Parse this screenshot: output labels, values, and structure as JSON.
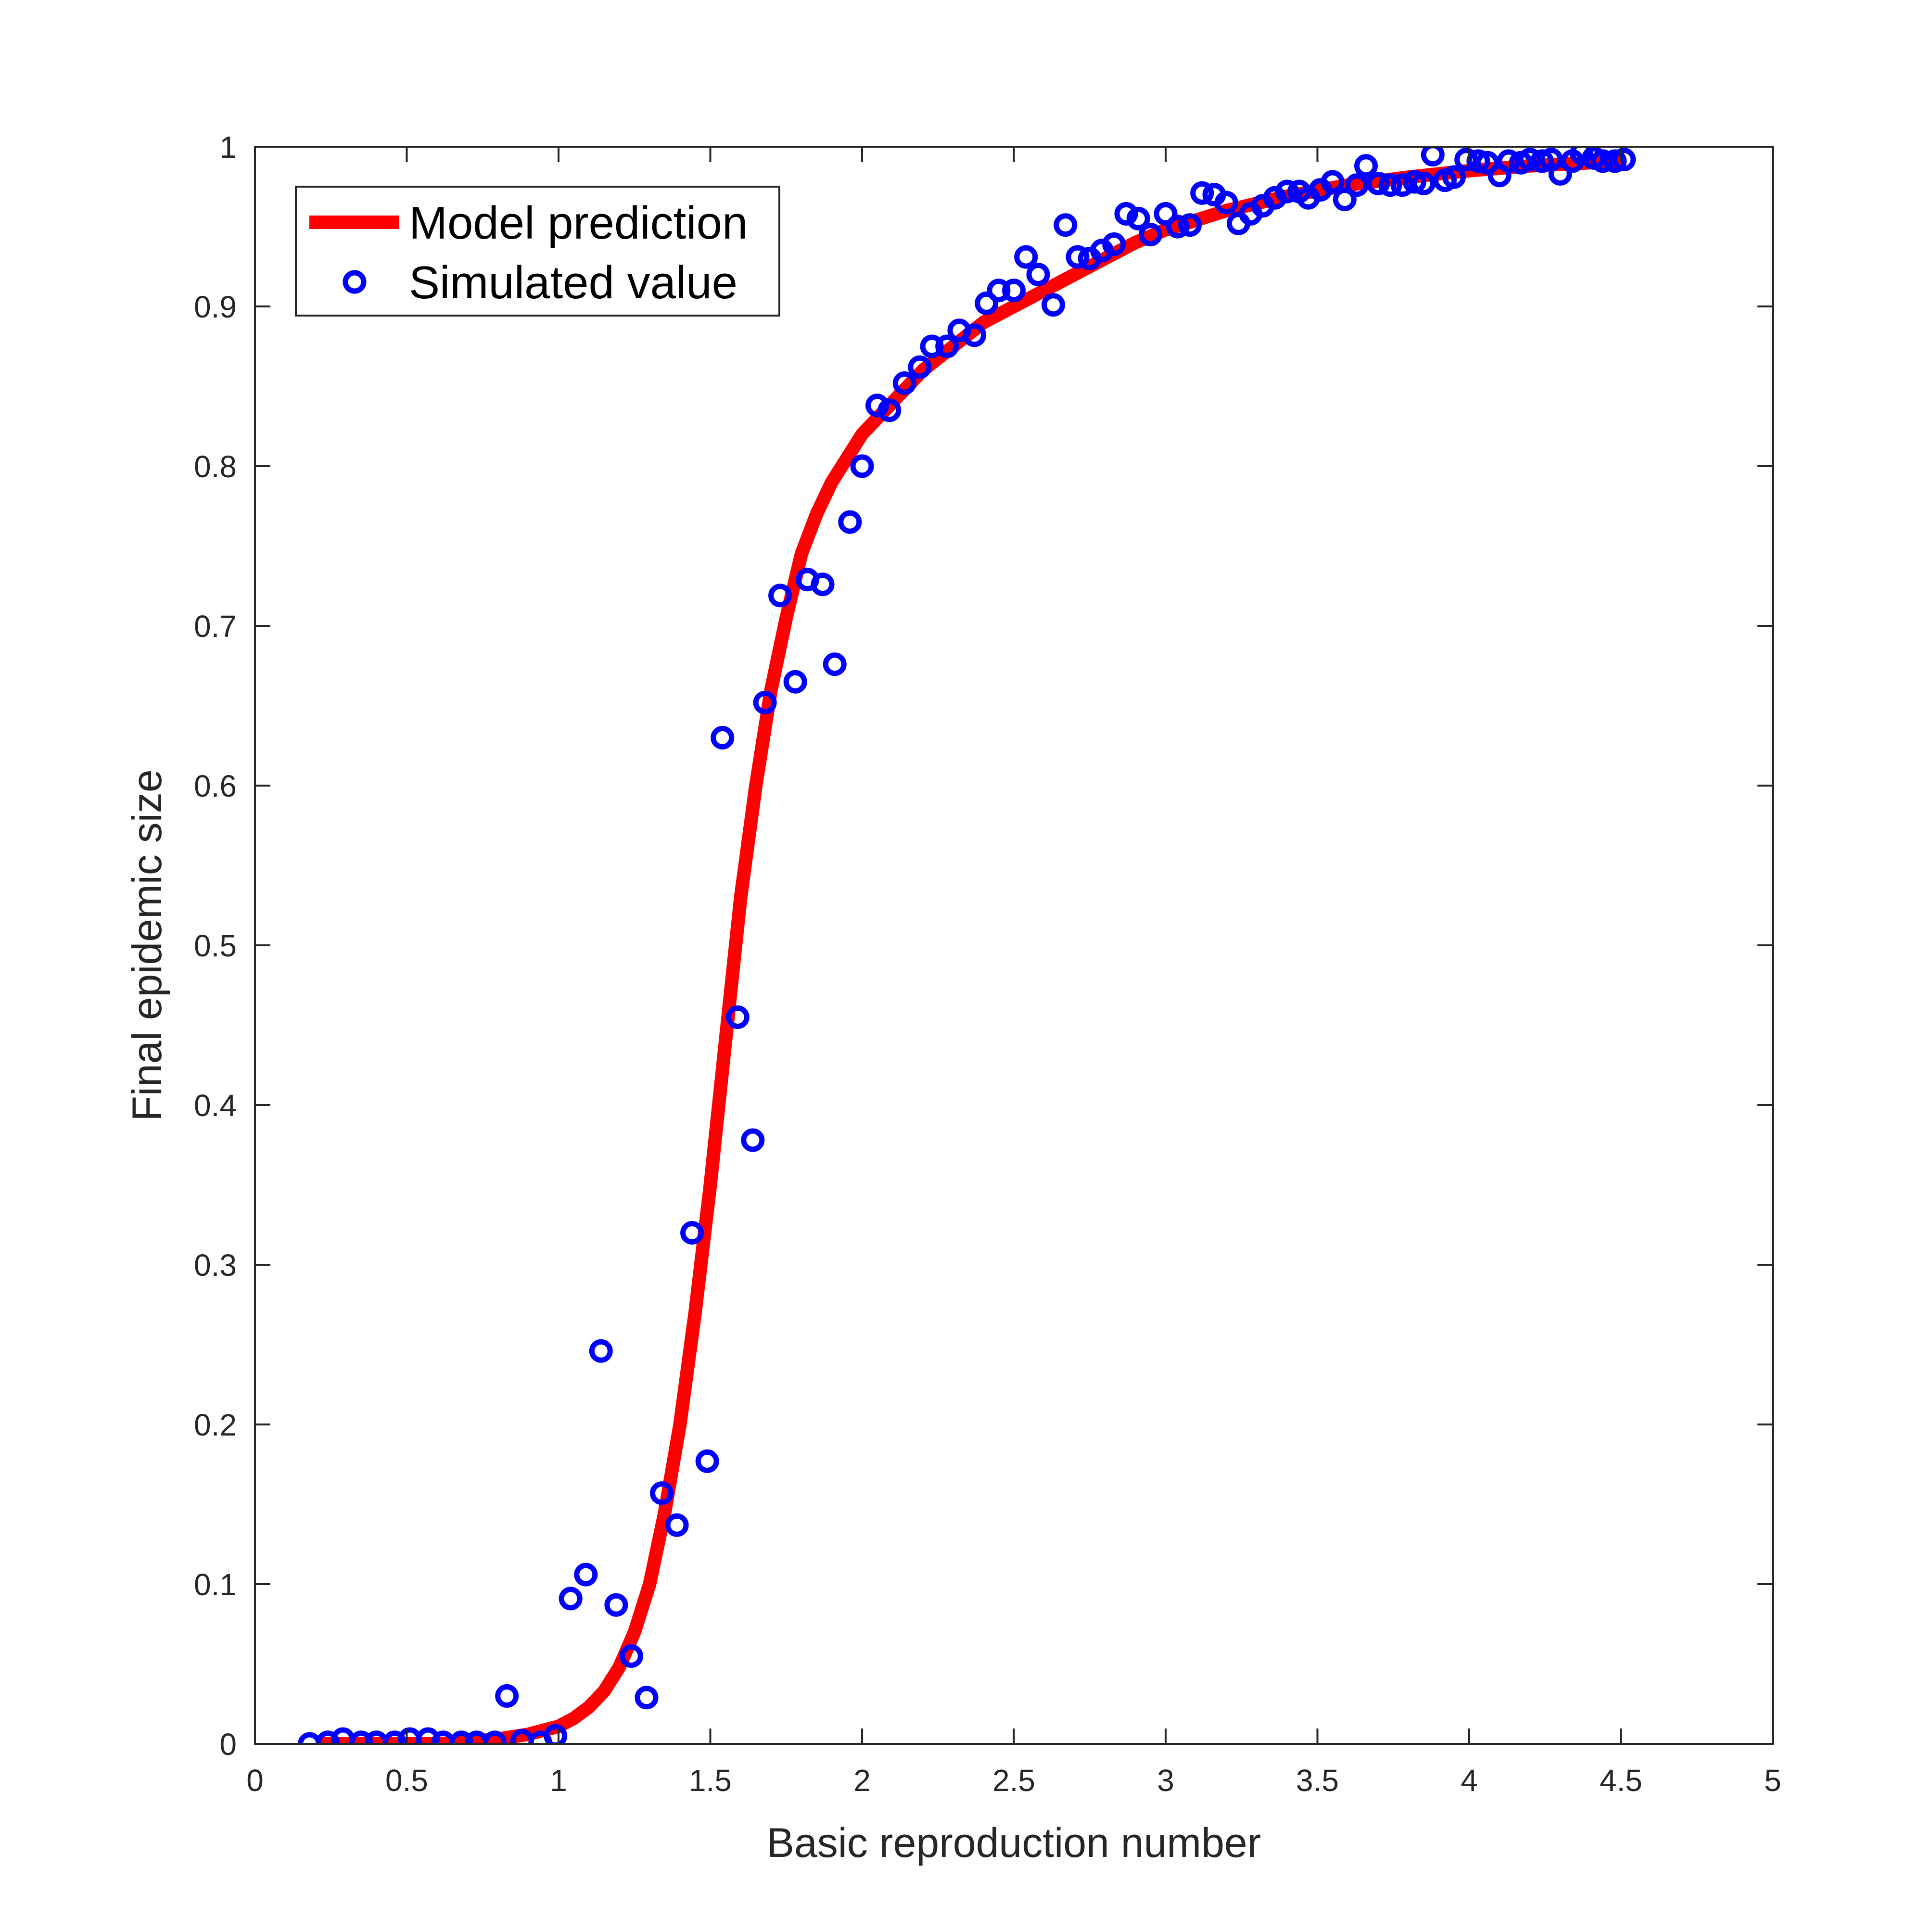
{
  "chart_data": {
    "type": "line",
    "title": "",
    "xlabel": "Basic reproduction number",
    "ylabel": "Final epidemic size",
    "xlim": [
      0,
      5
    ],
    "ylim": [
      0,
      1
    ],
    "x_ticks": [
      0,
      0.5,
      1,
      1.5,
      2,
      2.5,
      3,
      3.5,
      4,
      4.5,
      5
    ],
    "x_tick_labels": [
      "0",
      "0.5",
      "1",
      "1.5",
      "2",
      "2.5",
      "3",
      "3.5",
      "4",
      "4.5",
      "5"
    ],
    "y_ticks": [
      0,
      0.1,
      0.2,
      0.3,
      0.4,
      0.5,
      0.6,
      0.7,
      0.8,
      0.9,
      1
    ],
    "y_tick_labels": [
      "0",
      "0.1",
      "0.2",
      "0.3",
      "0.4",
      "0.5",
      "0.6",
      "0.7",
      "0.8",
      "0.9",
      "1"
    ],
    "grid": false,
    "legend": {
      "position": "top-left"
    },
    "series": [
      {
        "name": "Model prediction",
        "kind": "line",
        "color": "#ff0000",
        "x": [
          0.2,
          0.4,
          0.6,
          0.8,
          0.9,
          1.0,
          1.05,
          1.1,
          1.15,
          1.2,
          1.25,
          1.3,
          1.35,
          1.4,
          1.45,
          1.5,
          1.55,
          1.6,
          1.65,
          1.7,
          1.75,
          1.8,
          1.85,
          1.9,
          1.95,
          2.0,
          2.1,
          2.2,
          2.3,
          2.4,
          2.5,
          2.6,
          2.7,
          2.8,
          2.9,
          3.0,
          3.2,
          3.4,
          3.6,
          3.8,
          4.0,
          4.2,
          4.5
        ],
        "y": [
          0.0,
          0.0,
          0.0,
          0.003,
          0.006,
          0.011,
          0.016,
          0.023,
          0.033,
          0.048,
          0.07,
          0.1,
          0.145,
          0.2,
          0.27,
          0.35,
          0.44,
          0.53,
          0.6,
          0.66,
          0.705,
          0.745,
          0.77,
          0.79,
          0.805,
          0.82,
          0.84,
          0.86,
          0.875,
          0.89,
          0.9,
          0.91,
          0.92,
          0.93,
          0.94,
          0.948,
          0.96,
          0.969,
          0.976,
          0.981,
          0.985,
          0.988,
          0.991
        ]
      },
      {
        "name": "Simulated value",
        "kind": "scatter",
        "color": "#0000ff",
        "x": [
          0.18,
          0.24,
          0.29,
          0.35,
          0.4,
          0.46,
          0.51,
          0.57,
          0.62,
          0.68,
          0.73,
          0.79,
          0.83,
          0.88,
          0.94,
          0.99,
          1.04,
          1.09,
          1.14,
          1.19,
          1.24,
          1.29,
          1.34,
          1.39,
          1.44,
          1.49,
          1.54,
          1.59,
          1.64,
          1.68,
          1.73,
          1.78,
          1.82,
          1.87,
          1.91,
          1.96,
          2.0,
          2.05,
          2.09,
          2.14,
          2.19,
          2.23,
          2.28,
          2.32,
          2.37,
          2.41,
          2.45,
          2.5,
          2.54,
          2.58,
          2.63,
          2.67,
          2.71,
          2.75,
          2.79,
          2.83,
          2.87,
          2.91,
          2.95,
          3.0,
          3.04,
          3.08,
          3.12,
          3.16,
          3.2,
          3.24,
          3.28,
          3.32,
          3.36,
          3.4,
          3.44,
          3.47,
          3.51,
          3.55,
          3.59,
          3.63,
          3.66,
          3.7,
          3.74,
          3.78,
          3.82,
          3.85,
          3.88,
          3.92,
          3.95,
          3.99,
          4.03,
          4.06,
          4.1,
          4.13,
          4.17,
          4.2,
          4.24,
          4.27,
          4.3,
          4.34,
          4.37,
          4.41,
          4.44,
          4.48,
          4.51
        ],
        "y": [
          0.0,
          0.001,
          0.003,
          0.001,
          0.001,
          0.001,
          0.003,
          0.003,
          0.001,
          0.001,
          0.001,
          0.001,
          0.03,
          0.002,
          0.001,
          0.005,
          0.091,
          0.106,
          0.246,
          0.087,
          0.055,
          0.029,
          0.157,
          0.137,
          0.32,
          0.177,
          0.63,
          0.455,
          0.378,
          0.652,
          0.719,
          0.665,
          0.729,
          0.726,
          0.676,
          0.765,
          0.8,
          0.838,
          0.835,
          0.852,
          0.862,
          0.875,
          0.875,
          0.885,
          0.882,
          0.902,
          0.91,
          0.91,
          0.931,
          0.92,
          0.901,
          0.951,
          0.931,
          0.93,
          0.935,
          0.939,
          0.958,
          0.955,
          0.945,
          0.958,
          0.95,
          0.951,
          0.971,
          0.97,
          0.965,
          0.952,
          0.958,
          0.963,
          0.968,
          0.972,
          0.972,
          0.968,
          0.973,
          0.978,
          0.967,
          0.976,
          0.988,
          0.977,
          0.976,
          0.976,
          0.978,
          0.977,
          0.995,
          0.979,
          0.981,
          0.992,
          0.991,
          0.99,
          0.982,
          0.991,
          0.99,
          0.992,
          0.991,
          0.992,
          0.983,
          0.991,
          0.996,
          0.993,
          0.991,
          0.991,
          0.992
        ]
      }
    ]
  }
}
